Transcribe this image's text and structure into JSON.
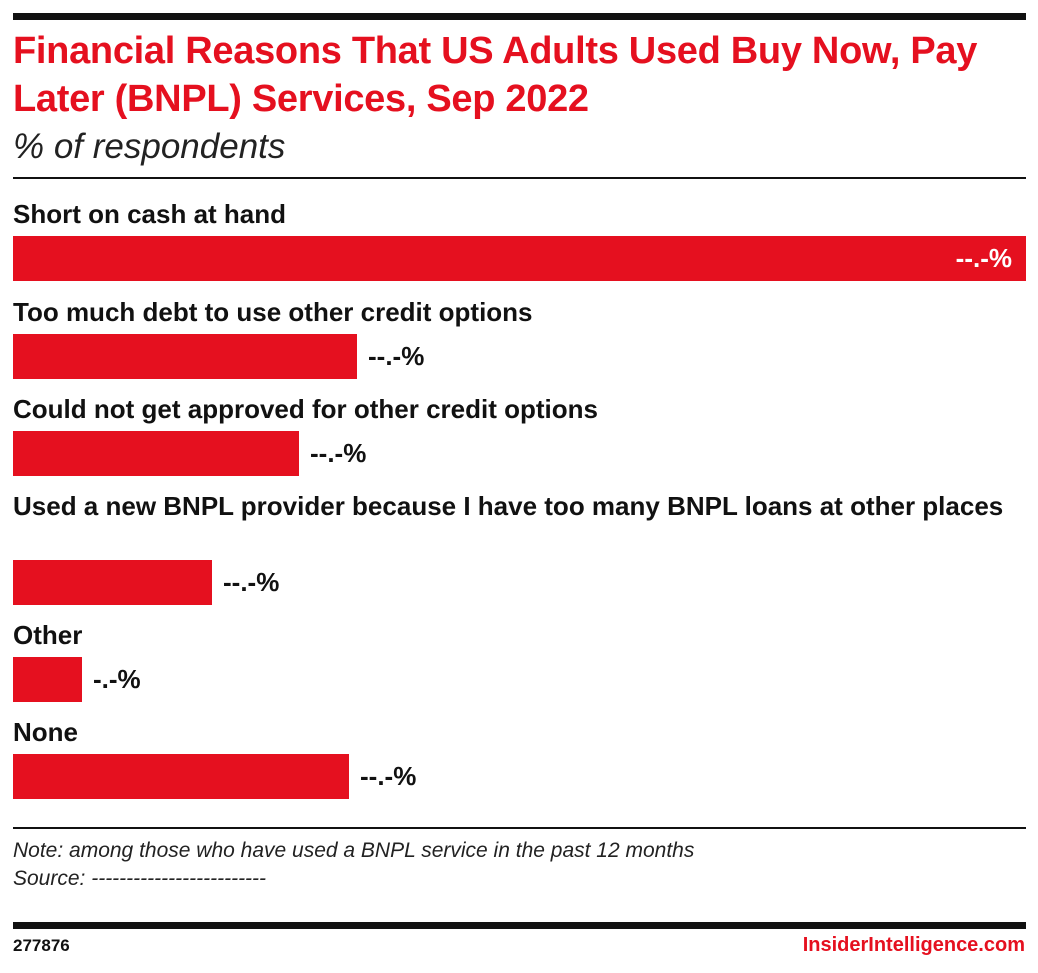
{
  "header": {
    "title": "Financial Reasons That US Adults Used Buy Now, Pay Later (BNPL) Services, Sep 2022",
    "subtitle": "% of respondents"
  },
  "colors": {
    "title": "#e5101f",
    "bar": "#e5101f",
    "rule": "#111111",
    "brand": "#e5101f"
  },
  "chart_data": {
    "type": "bar",
    "orientation": "horizontal",
    "categories": [
      "Short on cash at hand",
      "Too much debt to use other credit options",
      "Could not get approved for other credit options",
      "Used a new BNPL provider because I have too many BNPL loans at other places",
      "Other",
      "None"
    ],
    "values": [
      50.0,
      17.0,
      14.1,
      9.8,
      3.4,
      16.6
    ],
    "value_labels": [
      "--.-%",
      "--.-%",
      "--.-%",
      "--.-%",
      "-.-%",
      "--.-%"
    ],
    "xlim": [
      0,
      50.0
    ],
    "grid": false
  },
  "footer": {
    "note": "Note: among those who have used a BNPL service in the past 12 months",
    "source": "Source: -------------------------",
    "chart_id": "277876",
    "brand": "InsiderIntelligence.com"
  }
}
